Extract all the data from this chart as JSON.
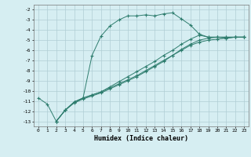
{
  "xlabel": "Humidex (Indice chaleur)",
  "bg_color": "#d6eef2",
  "line_color": "#2e7d6e",
  "grid_color": "#b0cdd4",
  "xlim": [
    -0.5,
    23.5
  ],
  "ylim": [
    -13.5,
    -1.5
  ],
  "xticks": [
    0,
    1,
    2,
    3,
    4,
    5,
    6,
    7,
    8,
    9,
    10,
    11,
    12,
    13,
    14,
    15,
    16,
    17,
    18,
    19,
    20,
    21,
    22,
    23
  ],
  "yticks": [
    -13,
    -12,
    -11,
    -10,
    -9,
    -8,
    -7,
    -6,
    -5,
    -4,
    -3,
    -2
  ],
  "line1_x": [
    0,
    1,
    2,
    3,
    4,
    5,
    6,
    7,
    8,
    9,
    10,
    11,
    12,
    13,
    14,
    15,
    16,
    17,
    18,
    19,
    20,
    21,
    22,
    23
  ],
  "line1_y": [
    -10.7,
    -11.3,
    -13.0,
    -11.9,
    -11.1,
    -10.7,
    -6.5,
    -4.6,
    -3.6,
    -3.0,
    -2.6,
    -2.6,
    -2.5,
    -2.6,
    -2.4,
    -2.3,
    -2.9,
    -3.5,
    -4.4,
    -4.7,
    -4.7,
    -4.8,
    -4.7,
    -4.7
  ],
  "line2_x": [
    2,
    3,
    4,
    5,
    6,
    7,
    8,
    9,
    10,
    11,
    12,
    13,
    14,
    15,
    16,
    17,
    18,
    19,
    20,
    21,
    22,
    23
  ],
  "line2_y": [
    -13.0,
    -11.9,
    -11.1,
    -10.7,
    -10.4,
    -10.1,
    -9.7,
    -9.3,
    -8.9,
    -8.5,
    -8.0,
    -7.5,
    -7.0,
    -6.5,
    -6.0,
    -5.5,
    -5.2,
    -5.0,
    -4.9,
    -4.8,
    -4.7,
    -4.7
  ],
  "line3_x": [
    2,
    3,
    4,
    5,
    6,
    7,
    8,
    9,
    10,
    11,
    12,
    13,
    14,
    15,
    16,
    17,
    18,
    19,
    20,
    21,
    22,
    23
  ],
  "line3_y": [
    -13.0,
    -11.9,
    -11.1,
    -10.7,
    -10.4,
    -10.1,
    -9.6,
    -9.1,
    -8.6,
    -8.1,
    -7.6,
    -7.1,
    -6.5,
    -6.0,
    -5.4,
    -4.9,
    -4.5,
    -4.7,
    -4.7,
    -4.7,
    -4.7,
    -4.7
  ],
  "line4_x": [
    2,
    3,
    4,
    5,
    6,
    7,
    8,
    9,
    10,
    11,
    12,
    13,
    14,
    15,
    16,
    17,
    18,
    19,
    20,
    21,
    22,
    23
  ],
  "line4_y": [
    -13.0,
    -11.9,
    -11.2,
    -10.8,
    -10.5,
    -10.2,
    -9.8,
    -9.4,
    -9.0,
    -8.6,
    -8.1,
    -7.6,
    -7.1,
    -6.5,
    -5.9,
    -5.4,
    -5.0,
    -4.8,
    -4.7,
    -4.7,
    -4.7,
    -4.7
  ]
}
